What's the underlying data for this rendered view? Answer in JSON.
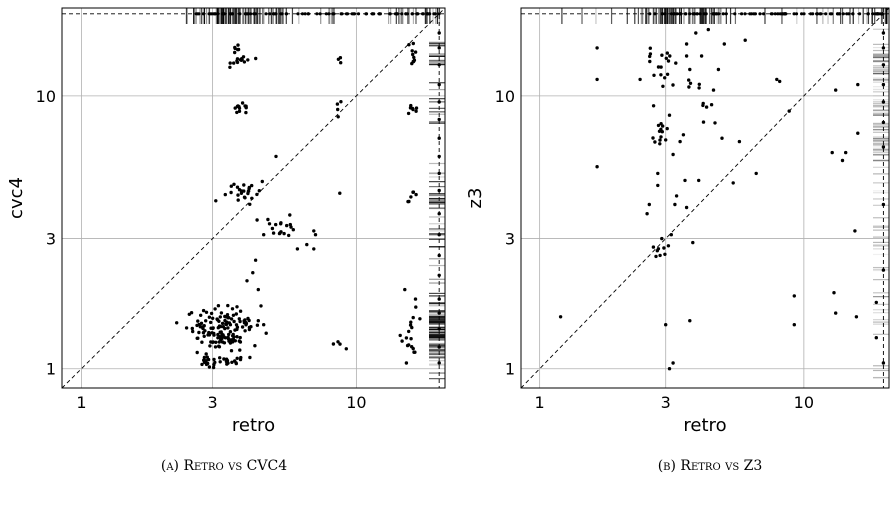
{
  "chart_data": [
    {
      "type": "scatter",
      "xlabel": "retro",
      "ylabel": "cvc4",
      "scale": "log",
      "xlim": [
        0.85,
        21.0
      ],
      "ylim": [
        0.85,
        21.0
      ],
      "xticks": [
        {
          "v": 1,
          "label": "1"
        },
        {
          "v": 3,
          "label": "3"
        },
        {
          "v": 10,
          "label": "10"
        }
      ],
      "yticks": [
        {
          "v": 1,
          "label": "1"
        },
        {
          "v": 3,
          "label": "3"
        },
        {
          "v": 10,
          "label": "10"
        }
      ],
      "grid": true,
      "diagonal": true,
      "timeout_x": 20,
      "timeout_y": 20,
      "caption": "(a) Retro vs CVC4",
      "clusters": [
        {
          "x": 2.9,
          "y": 1.45,
          "n": 40,
          "sx": 0.04,
          "sy": 0.03
        },
        {
          "x": 3.3,
          "y": 1.45,
          "n": 35,
          "sx": 0.05,
          "sy": 0.03
        },
        {
          "x": 3.7,
          "y": 1.42,
          "n": 30,
          "sx": 0.04,
          "sy": 0.03
        },
        {
          "x": 3.2,
          "y": 1.3,
          "n": 20,
          "sx": 0.04,
          "sy": 0.03
        },
        {
          "x": 2.9,
          "y": 1.05,
          "n": 16,
          "sx": 0.02,
          "sy": 0.01
        },
        {
          "x": 3.4,
          "y": 1.06,
          "n": 14,
          "sx": 0.03,
          "sy": 0.01
        },
        {
          "x": 3.6,
          "y": 1.2,
          "n": 10,
          "sx": 0.03,
          "sy": 0.03
        },
        {
          "x": 3.7,
          "y": 4.3,
          "n": 14,
          "sx": 0.03,
          "sy": 0.02
        },
        {
          "x": 4.1,
          "y": 4.55,
          "n": 12,
          "sx": 0.03,
          "sy": 0.02
        },
        {
          "x": 3.8,
          "y": 8.9,
          "n": 12,
          "sx": 0.02,
          "sy": 0.01
        },
        {
          "x": 3.85,
          "y": 13.5,
          "n": 14,
          "sx": 0.02,
          "sy": 0.01
        },
        {
          "x": 3.7,
          "y": 15.0,
          "n": 6,
          "sx": 0.01,
          "sy": 0.01
        },
        {
          "x": 5.3,
          "y": 3.35,
          "n": 18,
          "sx": 0.03,
          "sy": 0.02
        },
        {
          "x": 16.0,
          "y": 1.35,
          "n": 16,
          "sx": 0.02,
          "sy": 0.04
        },
        {
          "x": 16.0,
          "y": 4.3,
          "n": 6,
          "sx": 0.01,
          "sy": 0.01
        },
        {
          "x": 16.0,
          "y": 8.9,
          "n": 8,
          "sx": 0.01,
          "sy": 0.01
        },
        {
          "x": 16.0,
          "y": 13.5,
          "n": 5,
          "sx": 0.01,
          "sy": 0.01
        },
        {
          "x": 16.0,
          "y": 15.0,
          "n": 5,
          "sx": 0.01,
          "sy": 0.01
        },
        {
          "x": 8.7,
          "y": 9.2,
          "n": 4,
          "sx": 0.01,
          "sy": 0.01
        },
        {
          "x": 8.6,
          "y": 13.8,
          "n": 3,
          "sx": 0.01,
          "sy": 0.01
        },
        {
          "x": 8.7,
          "y": 1.23,
          "n": 4,
          "sx": 0.01,
          "sy": 0.01
        }
      ],
      "points": [
        [
          4.3,
          2.5
        ],
        [
          4.2,
          2.25
        ],
        [
          4.4,
          1.95
        ],
        [
          4.0,
          2.1
        ],
        [
          4.5,
          1.7
        ],
        [
          4.6,
          3.1
        ],
        [
          5.1,
          6.0
        ],
        [
          6.1,
          2.75
        ],
        [
          6.6,
          2.85
        ],
        [
          7.0,
          2.75
        ],
        [
          7.1,
          3.1
        ],
        [
          7.0,
          3.2
        ],
        [
          4.4,
          1.5
        ],
        [
          4.6,
          1.45
        ],
        [
          4.7,
          1.35
        ],
        [
          8.7,
          4.4
        ],
        [
          15.0,
          1.95
        ],
        [
          15.2,
          1.05
        ],
        [
          16.2,
          1.15
        ],
        [
          16.4,
          1.8
        ],
        [
          4.1,
          1.1
        ],
        [
          3.0,
          1.25
        ],
        [
          2.8,
          1.1
        ]
      ],
      "timeout_on_x_y": [
        1.05,
        1.2,
        1.4,
        1.6,
        1.8,
        2.2,
        2.6,
        3.1,
        3.7,
        4.5,
        5.2,
        6.0,
        7.0,
        8.2,
        9.5,
        11.0,
        13.0,
        15.0,
        17.0
      ]
    },
    {
      "type": "scatter",
      "xlabel": "retro",
      "ylabel": "z3",
      "scale": "log",
      "xlim": [
        0.85,
        21.0
      ],
      "ylim": [
        0.85,
        21.0
      ],
      "xticks": [
        {
          "v": 1,
          "label": "1"
        },
        {
          "v": 3,
          "label": "3"
        },
        {
          "v": 10,
          "label": "10"
        }
      ],
      "yticks": [
        {
          "v": 1,
          "label": "1"
        },
        {
          "v": 3,
          "label": "3"
        },
        {
          "v": 10,
          "label": "10"
        }
      ],
      "grid": true,
      "diagonal": true,
      "timeout_x": 20,
      "timeout_y": 20,
      "caption": "(b) Retro vs Z3",
      "clusters": [
        {
          "x": 2.9,
          "y": 13.5,
          "n": 12,
          "sx": 0.03,
          "sy": 0.02
        },
        {
          "x": 2.85,
          "y": 7.3,
          "n": 12,
          "sx": 0.02,
          "sy": 0.02
        },
        {
          "x": 2.9,
          "y": 2.7,
          "n": 8,
          "sx": 0.02,
          "sy": 0.01
        },
        {
          "x": 3.0,
          "y": 11.2,
          "n": 5,
          "sx": 0.02,
          "sy": 0.02
        },
        {
          "x": 3.75,
          "y": 11.0,
          "n": 5,
          "sx": 0.03,
          "sy": 0.02
        },
        {
          "x": 4.2,
          "y": 8.8,
          "n": 6,
          "sx": 0.02,
          "sy": 0.02
        }
      ],
      "points": [
        [
          1.2,
          1.55
        ],
        [
          1.65,
          15.0
        ],
        [
          1.65,
          11.5
        ],
        [
          1.65,
          5.5
        ],
        [
          2.4,
          11.5
        ],
        [
          2.55,
          3.7
        ],
        [
          2.6,
          4.0
        ],
        [
          2.7,
          9.2
        ],
        [
          2.8,
          4.7
        ],
        [
          2.8,
          5.2
        ],
        [
          2.9,
          3.0
        ],
        [
          3.0,
          6.9
        ],
        [
          3.0,
          1.45
        ],
        [
          3.05,
          12.0
        ],
        [
          3.1,
          8.5
        ],
        [
          3.2,
          6.1
        ],
        [
          3.25,
          4.0
        ],
        [
          3.3,
          4.3
        ],
        [
          3.15,
          3.1
        ],
        [
          3.1,
          1.0
        ],
        [
          3.2,
          1.05
        ],
        [
          3.4,
          6.8
        ],
        [
          3.5,
          7.2
        ],
        [
          3.55,
          4.9
        ],
        [
          3.6,
          3.9
        ],
        [
          3.7,
          1.5
        ],
        [
          3.7,
          12.5
        ],
        [
          3.6,
          14.0
        ],
        [
          3.6,
          15.5
        ],
        [
          3.8,
          2.9
        ],
        [
          3.9,
          17.0
        ],
        [
          4.0,
          4.9
        ],
        [
          4.1,
          14.0
        ],
        [
          4.35,
          17.5
        ],
        [
          4.55,
          10.5
        ],
        [
          4.75,
          12.5
        ],
        [
          4.9,
          7.0
        ],
        [
          5.0,
          15.5
        ],
        [
          5.4,
          4.8
        ],
        [
          5.7,
          6.8
        ],
        [
          6.0,
          16.0
        ],
        [
          6.6,
          5.2
        ],
        [
          7.9,
          11.5
        ],
        [
          8.1,
          11.3
        ],
        [
          8.8,
          8.8
        ],
        [
          9.2,
          1.85
        ],
        [
          9.2,
          1.45
        ],
        [
          13.2,
          10.5
        ],
        [
          13.0,
          1.9
        ],
        [
          13.2,
          1.6
        ],
        [
          14.0,
          5.8
        ],
        [
          14.4,
          6.2
        ],
        [
          15.6,
          3.2
        ],
        [
          15.8,
          1.55
        ],
        [
          16.0,
          7.3
        ],
        [
          16.0,
          11.0
        ],
        [
          18.8,
          1.75
        ],
        [
          18.8,
          1.3
        ],
        [
          12.8,
          6.2
        ]
      ],
      "timeout_on_x_y": [
        1.05,
        2.3,
        4.0,
        6.5,
        8.0,
        9.5,
        11.0,
        13.0,
        15.0,
        17.0
      ]
    }
  ]
}
